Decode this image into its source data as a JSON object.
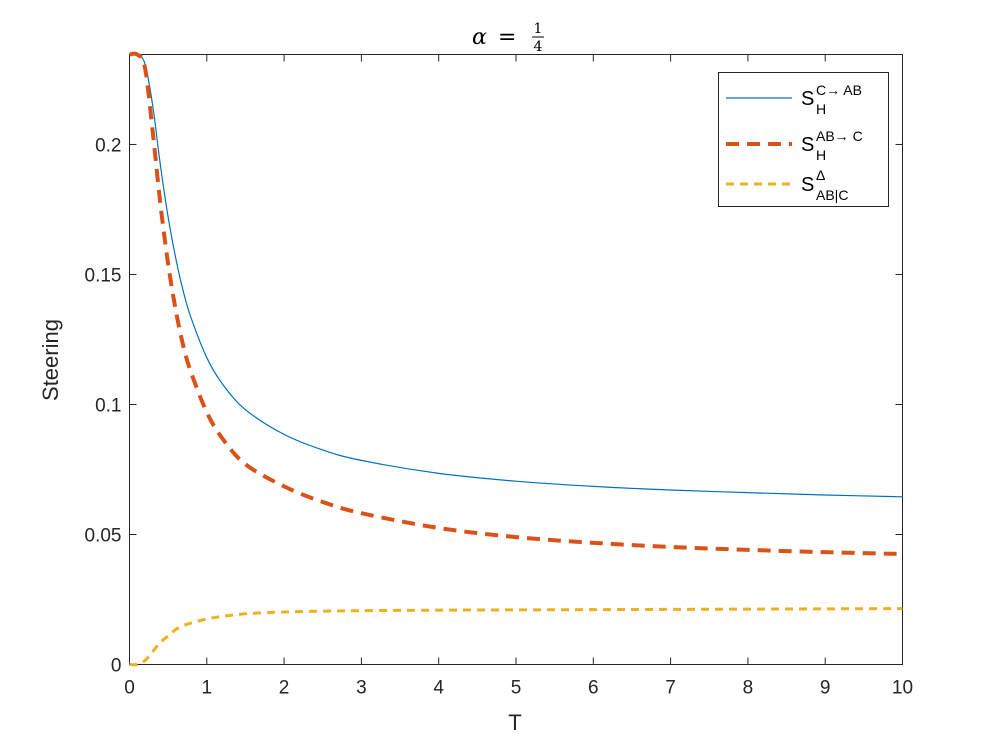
{
  "chart_data": {
    "type": "line",
    "title": {
      "variable": "α",
      "equals": "=",
      "numerator": "1",
      "denominator": "4"
    },
    "xlabel": "T",
    "ylabel": "Steering",
    "xlim": [
      0,
      10
    ],
    "ylim": [
      0,
      0.2346
    ],
    "xticks": [
      0,
      1,
      2,
      3,
      4,
      5,
      6,
      7,
      8,
      9,
      10
    ],
    "xtick_labels": [
      "0",
      "1",
      "2",
      "3",
      "4",
      "5",
      "6",
      "7",
      "8",
      "9",
      "10"
    ],
    "yticks": [
      0,
      0.05,
      0.1,
      0.15,
      0.2
    ],
    "ytick_labels": [
      "0",
      "0.05",
      "0.1",
      "0.15",
      "0.2"
    ],
    "grid": false,
    "legend_position": "top-right",
    "x": [
      0,
      0.1,
      0.2,
      0.3,
      0.4,
      0.5,
      0.6,
      0.7,
      0.8,
      1.0,
      1.2,
      1.5,
      2.0,
      2.5,
      3.0,
      4.0,
      5.0,
      6.0,
      7.0,
      8.0,
      9.0,
      10.0
    ],
    "series": [
      {
        "legend": {
          "base": "S",
          "sup": "C→ AB",
          "sub": "H"
        },
        "color": "#0072BD",
        "style": "solid",
        "values": [
          0.2346,
          0.2346,
          0.231,
          0.215,
          0.192,
          0.172,
          0.156,
          0.143,
          0.133,
          0.118,
          0.108,
          0.098,
          0.0885,
          0.0825,
          0.0785,
          0.0735,
          0.0705,
          0.0685,
          0.0671,
          0.0661,
          0.0652,
          0.0645
        ]
      },
      {
        "legend": {
          "base": "S",
          "sup": "AB→ C",
          "sub": "H"
        },
        "color": "#D95319",
        "style": "dashed-thick",
        "values": [
          0.2346,
          0.2346,
          0.2295,
          0.205,
          0.177,
          0.154,
          0.136,
          0.122,
          0.112,
          0.097,
          0.087,
          0.077,
          0.0685,
          0.0625,
          0.0582,
          0.0525,
          0.049,
          0.0468,
          0.0452,
          0.0441,
          0.0432,
          0.0425
        ]
      },
      {
        "legend": {
          "base": "S",
          "sup": "Δ",
          "sub": "AB|C"
        },
        "color": "#EDB120",
        "style": "dashed",
        "values": [
          0,
          0,
          0.0015,
          0.005,
          0.0085,
          0.011,
          0.0135,
          0.015,
          0.016,
          0.0175,
          0.0185,
          0.0195,
          0.0202,
          0.0205,
          0.0207,
          0.0209,
          0.021,
          0.0211,
          0.0212,
          0.0213,
          0.0214,
          0.0215
        ]
      }
    ]
  }
}
